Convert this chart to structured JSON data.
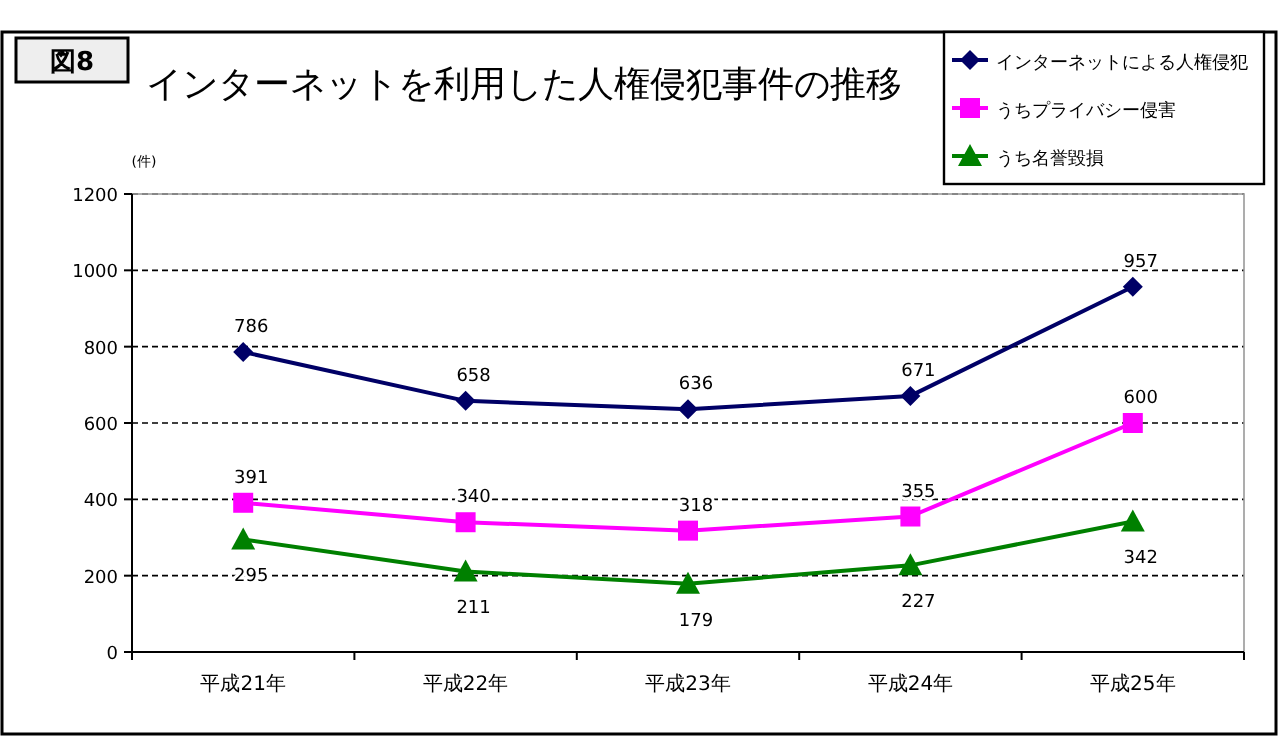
{
  "chart_data": {
    "type": "line",
    "title": "インターネットを利用した人権侵犯事件の推移",
    "ylabel": "(件)",
    "annotations": [
      "図8"
    ],
    "categories": [
      "平成21年",
      "平成22年",
      "平成23年",
      "平成24年",
      "平成25年"
    ],
    "series": [
      {
        "name": "インターネットによる人権侵犯",
        "color": "#000066",
        "marker": "diamond",
        "values": [
          786,
          658,
          636,
          671,
          957
        ]
      },
      {
        "name": "うちプライバシー侵害",
        "color": "#ff00ff",
        "marker": "square",
        "values": [
          391,
          340,
          318,
          355,
          600
        ]
      },
      {
        "name": "うち名誉毀損",
        "color": "#008000",
        "marker": "triangle",
        "values": [
          295,
          211,
          179,
          227,
          342
        ]
      }
    ],
    "ylim": [
      0,
      1200
    ],
    "yticks": [
      0,
      200,
      400,
      600,
      800,
      1000,
      1200
    ],
    "grid": "y",
    "legend": "top right",
    "data_labels": true,
    "line_style": "solid"
  }
}
